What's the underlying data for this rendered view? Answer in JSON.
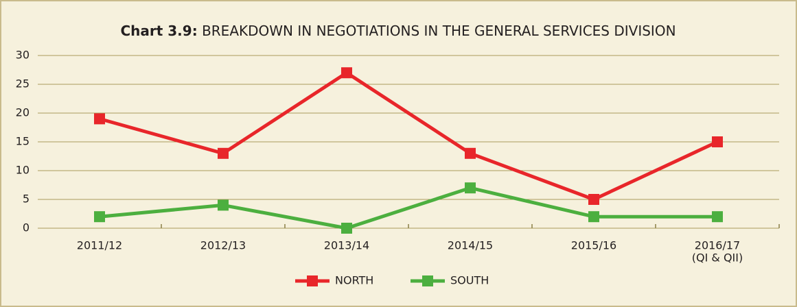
{
  "chart_data": {
    "type": "line",
    "title_label": "Chart 3.9:",
    "title": "BREAKDOWN IN NEGOTIATIONS IN THE GENERAL SERVICES DIVISION",
    "categories": [
      [
        "2011/12"
      ],
      [
        "2012/13"
      ],
      [
        "2013/14"
      ],
      [
        "2014/15"
      ],
      [
        "2015/16"
      ],
      [
        "2016/17",
        "(QI & QII)"
      ]
    ],
    "series": [
      {
        "name": "NORTH",
        "color": "#e8262a",
        "values": [
          19,
          13,
          27,
          13,
          5,
          15
        ]
      },
      {
        "name": "SOUTH",
        "color": "#4caf3f",
        "values": [
          2,
          4,
          0,
          7,
          2,
          2
        ]
      }
    ],
    "ylim": [
      0,
      30
    ],
    "yticks": [
      0,
      5,
      10,
      15,
      20,
      25,
      30
    ],
    "grid": true,
    "legend": "bottom"
  }
}
